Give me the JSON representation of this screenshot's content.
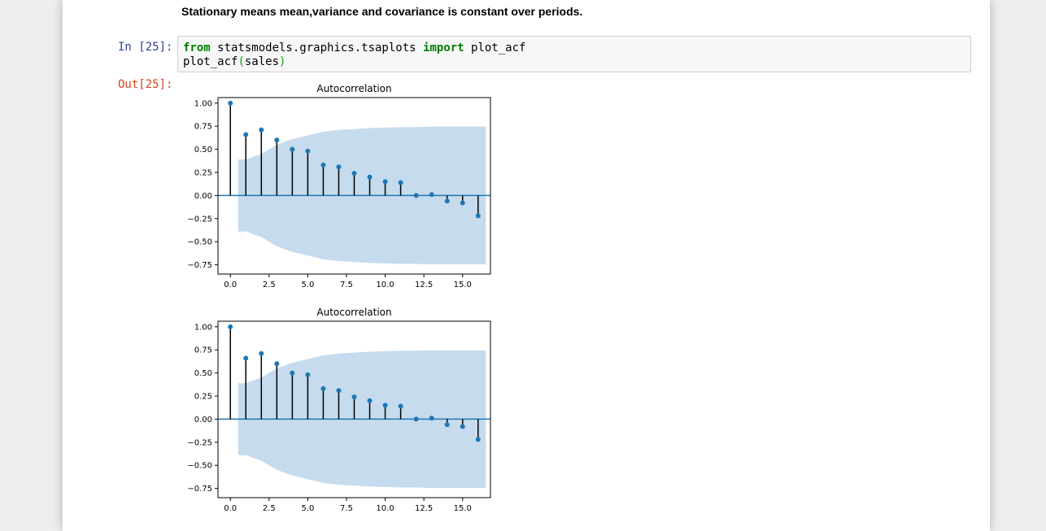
{
  "markdown": {
    "text": "Stationary means mean,variance and covariance is constant over periods."
  },
  "cell": {
    "in_prompt": "In [25]:",
    "out_prompt": "Out[25]:",
    "code": {
      "line1": {
        "kw_from": "from",
        "module": " statsmodels.graphics.tsaplots ",
        "kw_import": "import",
        "name": " plot_acf"
      },
      "line2": {
        "func": "plot_acf",
        "open": "(",
        "arg": "sales",
        "close": ")"
      }
    }
  },
  "colors": {
    "stem": "#000000",
    "marker": "#1f77b4",
    "zero_line": "#1f77b4",
    "band": "#c6dbed"
  },
  "chart_data": [
    {
      "type": "scatter",
      "title": "Autocorrelation",
      "xlim": [
        -0.8,
        16.8
      ],
      "ylim": [
        -0.85,
        1.06
      ],
      "xticks": [
        0.0,
        2.5,
        5.0,
        7.5,
        10.0,
        12.5,
        15.0
      ],
      "xtick_labels": [
        "0.0",
        "2.5",
        "5.0",
        "7.5",
        "10.0",
        "12.5",
        "15.0"
      ],
      "yticks": [
        1.0,
        0.75,
        0.5,
        0.25,
        0.0,
        -0.25,
        -0.5,
        -0.75
      ],
      "ytick_labels": [
        "1.00",
        "0.75",
        "0.50",
        "0.25",
        "0.00",
        "−0.25",
        "−0.50",
        "−0.75"
      ],
      "x": [
        0,
        1,
        2,
        3,
        4,
        5,
        6,
        7,
        8,
        9,
        10,
        11,
        12,
        13,
        14,
        15,
        16
      ],
      "values": [
        1.0,
        0.66,
        0.71,
        0.6,
        0.5,
        0.48,
        0.33,
        0.31,
        0.24,
        0.2,
        0.15,
        0.14,
        0.0,
        0.01,
        -0.06,
        -0.08,
        -0.22
      ],
      "confidence_band": [
        0.33,
        0.39,
        0.45,
        0.55,
        0.61,
        0.65,
        0.69,
        0.71,
        0.72,
        0.73,
        0.735,
        0.74,
        0.74,
        0.745,
        0.745,
        0.745,
        0.745
      ],
      "grid": false
    },
    {
      "type": "scatter",
      "title": "Autocorrelation",
      "xlim": [
        -0.8,
        16.8
      ],
      "ylim": [
        -0.85,
        1.06
      ],
      "xticks": [
        0.0,
        2.5,
        5.0,
        7.5,
        10.0,
        12.5,
        15.0
      ],
      "xtick_labels": [
        "0.0",
        "2.5",
        "5.0",
        "7.5",
        "10.0",
        "12.5",
        "15.0"
      ],
      "yticks": [
        1.0,
        0.75,
        0.5,
        0.25,
        0.0,
        -0.25,
        -0.5,
        -0.75
      ],
      "ytick_labels": [
        "1.00",
        "0.75",
        "0.50",
        "0.25",
        "0.00",
        "−0.25",
        "−0.50",
        "−0.75"
      ],
      "x": [
        0,
        1,
        2,
        3,
        4,
        5,
        6,
        7,
        8,
        9,
        10,
        11,
        12,
        13,
        14,
        15,
        16
      ],
      "values": [
        1.0,
        0.66,
        0.71,
        0.6,
        0.5,
        0.48,
        0.33,
        0.31,
        0.24,
        0.2,
        0.15,
        0.14,
        0.0,
        0.01,
        -0.06,
        -0.08,
        -0.22
      ],
      "confidence_band": [
        0.33,
        0.39,
        0.45,
        0.55,
        0.61,
        0.65,
        0.69,
        0.71,
        0.72,
        0.73,
        0.735,
        0.74,
        0.74,
        0.745,
        0.745,
        0.745,
        0.745
      ],
      "grid": false
    }
  ]
}
